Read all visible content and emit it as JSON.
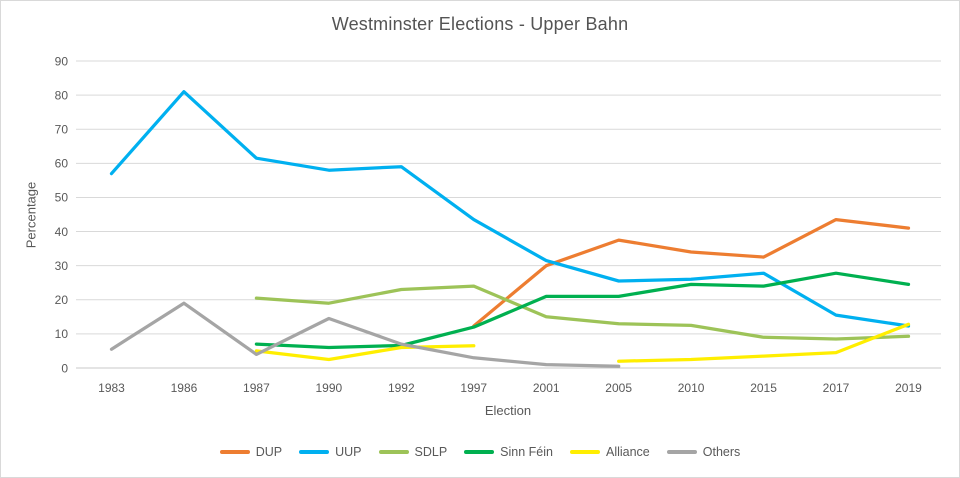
{
  "chart_data": {
    "type": "line",
    "title": "Westminster Elections - Upper Bahn",
    "xlabel": "Election",
    "ylabel": "Percentage",
    "ylim": [
      0,
      90
    ],
    "yticks": [
      0,
      10,
      20,
      30,
      40,
      50,
      60,
      70,
      80,
      90
    ],
    "grid": true,
    "legend_position": "bottom",
    "categories": [
      "1983",
      "1986",
      "1987",
      "1990",
      "1992",
      "1997",
      "2001",
      "2005",
      "2010",
      "2015",
      "2017",
      "2019"
    ],
    "series": [
      {
        "name": "DUP",
        "color": "#ED7D31",
        "values": [
          null,
          null,
          null,
          null,
          null,
          12.3,
          30,
          37.5,
          34,
          32.5,
          43.5,
          41
        ]
      },
      {
        "name": "UUP",
        "color": "#00B0F0",
        "values": [
          57,
          81,
          61.5,
          58,
          59,
          43.5,
          31.5,
          25.5,
          26,
          27.8,
          15.5,
          12.3
        ]
      },
      {
        "name": "SDLP",
        "color": "#9DC358",
        "values": [
          null,
          null,
          20.5,
          19,
          23,
          24,
          15,
          13,
          12.5,
          9,
          8.5,
          9.3
        ]
      },
      {
        "name": "Sinn Féin",
        "color": "#00B050",
        "values": [
          null,
          null,
          7,
          6,
          6.6,
          12,
          21,
          21,
          24.5,
          24,
          27.8,
          24.5
        ]
      },
      {
        "name": "Alliance",
        "color": "#FFEE00",
        "values": [
          null,
          null,
          5,
          2.5,
          6,
          6.5,
          null,
          2,
          2.5,
          3.5,
          4.5,
          12.8
        ]
      },
      {
        "name": "Others",
        "color": "#A5A5A5",
        "values": [
          5.5,
          19,
          4,
          14.5,
          7,
          3,
          1,
          0.5,
          null,
          null,
          null,
          null
        ]
      }
    ],
    "style_colors": {
      "gridline": "#D9D9D9",
      "axis_line": "#C9C9C9",
      "text": "#595959"
    }
  }
}
